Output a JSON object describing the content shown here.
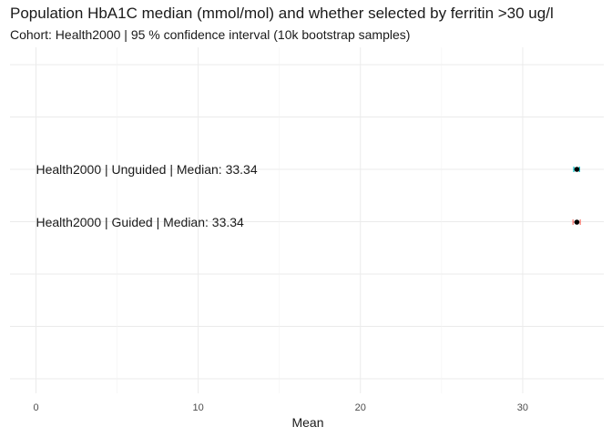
{
  "chart_data": {
    "type": "scatter",
    "title": "Population HbA1C median (mmol/mol) and whether selected by ferritin >30 ug/l",
    "subtitle": "Cohort: Health2000 | 95 % confidence interval (10k bootstrap samples)",
    "xlabel": "Mean",
    "ylabel": "",
    "xlim": [
      -1.6,
      35.0
    ],
    "x_ticks": [
      0,
      10,
      20,
      30
    ],
    "x_tick_labels": [
      "0",
      "10",
      "20",
      "30"
    ],
    "grid": true,
    "series": [
      {
        "label": "Health2000 | Unguided | Median: 33.34",
        "value": 33.34,
        "ci_low": 33.15,
        "ci_high": 33.5,
        "color": "#00bfc4"
      },
      {
        "label": "Health2000 | Guided | Median: 33.34",
        "value": 33.34,
        "ci_low": 33.1,
        "ci_high": 33.55,
        "color": "#f8766d"
      }
    ],
    "point_color": "#000000"
  }
}
